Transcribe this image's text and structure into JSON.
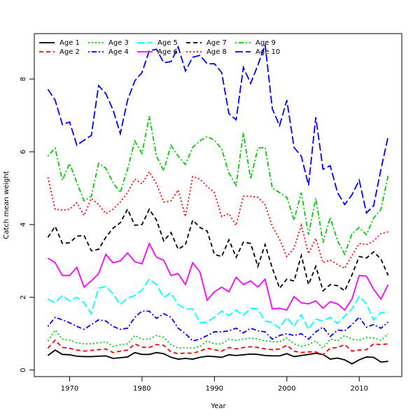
{
  "chart_data": {
    "type": "line",
    "x_label": "Year",
    "y_label": "Catch mean weight",
    "x": [
      1967,
      1968,
      1969,
      1970,
      1971,
      1972,
      1973,
      1974,
      1975,
      1976,
      1977,
      1978,
      1979,
      1980,
      1981,
      1982,
      1983,
      1984,
      1985,
      1986,
      1987,
      1988,
      1989,
      1990,
      1991,
      1992,
      1993,
      1994,
      1995,
      1996,
      1997,
      1998,
      1999,
      2000,
      2001,
      2002,
      2003,
      2004,
      2005,
      2006,
      2007,
      2008,
      2009,
      2010,
      2011,
      2012,
      2013,
      2014
    ],
    "xlim": [
      1965.12,
      2015.88
    ],
    "xticks": [
      1970,
      1980,
      1990,
      2000,
      2010
    ],
    "ylim": [
      -0.18,
      9.25
    ],
    "yticks": [
      0,
      2,
      4,
      6,
      8
    ],
    "legend": "top-left",
    "series": [
      {
        "name": "Age 1",
        "color": "#000000",
        "linestyle": "solid",
        "values": [
          0.4,
          0.55,
          0.43,
          0.42,
          0.38,
          0.37,
          0.37,
          0.38,
          0.39,
          0.32,
          0.34,
          0.36,
          0.48,
          0.43,
          0.43,
          0.48,
          0.45,
          0.35,
          0.3,
          0.32,
          0.3,
          0.35,
          0.38,
          0.37,
          0.35,
          0.42,
          0.4,
          0.42,
          0.44,
          0.43,
          0.4,
          0.39,
          0.39,
          0.45,
          0.37,
          0.4,
          0.43,
          0.46,
          0.43,
          0.3,
          0.33,
          0.28,
          0.17,
          0.28,
          0.36,
          0.35,
          0.22,
          0.24
        ]
      },
      {
        "name": "Age 2",
        "color": "#ff0000",
        "linestyle": "dashed",
        "values": [
          0.6,
          0.82,
          0.62,
          0.6,
          0.55,
          0.52,
          0.54,
          0.56,
          0.58,
          0.48,
          0.52,
          0.55,
          0.72,
          0.63,
          0.62,
          0.7,
          0.68,
          0.5,
          0.45,
          0.47,
          0.46,
          0.52,
          0.6,
          0.56,
          0.52,
          0.62,
          0.58,
          0.62,
          0.64,
          0.62,
          0.58,
          0.56,
          0.58,
          0.68,
          0.52,
          0.48,
          0.5,
          0.5,
          0.42,
          0.6,
          0.62,
          0.7,
          0.52,
          0.55,
          0.56,
          0.72,
          0.7,
          0.72
        ]
      },
      {
        "name": "Age 3",
        "color": "#00cd00",
        "linestyle": "dotted",
        "values": [
          0.8,
          1.1,
          0.85,
          0.82,
          0.75,
          0.72,
          0.72,
          0.75,
          0.78,
          0.65,
          0.7,
          0.72,
          0.95,
          0.85,
          0.85,
          0.95,
          0.9,
          0.7,
          0.6,
          0.62,
          0.6,
          0.65,
          0.8,
          0.72,
          0.72,
          0.85,
          0.82,
          0.85,
          0.88,
          0.85,
          0.8,
          0.78,
          0.78,
          0.88,
          0.72,
          0.65,
          0.7,
          0.8,
          0.6,
          0.85,
          0.8,
          0.95,
          0.85,
          0.82,
          0.9,
          0.88,
          0.82,
          1.0
        ]
      },
      {
        "name": "Age 4",
        "color": "#0000ff",
        "linestyle": "dotdash",
        "values": [
          1.2,
          1.45,
          1.38,
          1.3,
          1.2,
          1.12,
          1.25,
          1.38,
          1.35,
          1.2,
          1.12,
          1.15,
          1.45,
          1.62,
          1.62,
          1.42,
          1.55,
          1.45,
          1.15,
          1.0,
          0.8,
          0.85,
          0.95,
          1.05,
          1.05,
          1.08,
          1.15,
          1.02,
          1.15,
          1.08,
          1.05,
          0.85,
          0.95,
          1.0,
          0.95,
          1.0,
          0.85,
          1.05,
          1.18,
          0.92,
          1.1,
          1.08,
          1.25,
          1.45,
          1.18,
          1.25,
          1.15,
          1.32
        ]
      },
      {
        "name": "Age 5",
        "color": "#00ffff",
        "linestyle": "longdash",
        "values": [
          1.95,
          1.85,
          2.05,
          1.9,
          2.0,
          1.85,
          1.55,
          2.25,
          2.3,
          2.1,
          1.8,
          1.98,
          2.05,
          2.2,
          2.5,
          2.35,
          2.0,
          2.12,
          1.8,
          1.68,
          1.68,
          1.3,
          1.32,
          1.45,
          1.62,
          1.5,
          1.65,
          1.5,
          1.7,
          1.68,
          1.35,
          1.3,
          1.15,
          1.45,
          1.2,
          1.52,
          1.12,
          1.4,
          1.35,
          1.45,
          1.28,
          1.48,
          1.68,
          2.02,
          1.82,
          1.38,
          1.58,
          1.58
        ]
      },
      {
        "name": "Age 6",
        "color": "#ff00ff",
        "linestyle": "solid",
        "values": [
          3.08,
          2.95,
          2.6,
          2.6,
          2.82,
          2.28,
          2.45,
          2.65,
          3.18,
          2.95,
          3.0,
          3.22,
          2.98,
          2.92,
          3.48,
          3.1,
          3.02,
          2.6,
          2.65,
          2.35,
          2.95,
          2.7,
          1.92,
          2.15,
          2.28,
          2.15,
          2.55,
          2.35,
          2.45,
          2.28,
          2.5,
          1.68,
          1.7,
          1.65,
          2.02,
          1.85,
          1.82,
          1.9,
          1.7,
          1.88,
          1.82,
          1.65,
          1.95,
          2.6,
          2.58,
          2.22,
          1.95,
          2.35
        ]
      },
      {
        "name": "Age 7",
        "color": "#000000",
        "linestyle": "dashed",
        "values": [
          3.65,
          3.95,
          3.48,
          3.5,
          3.68,
          3.7,
          3.28,
          3.32,
          3.65,
          3.9,
          4.05,
          4.42,
          3.98,
          4.0,
          4.42,
          4.12,
          3.55,
          3.78,
          3.32,
          3.45,
          4.12,
          3.92,
          3.82,
          3.18,
          3.12,
          3.58,
          3.1,
          3.52,
          3.48,
          2.85,
          3.45,
          2.8,
          2.25,
          2.5,
          2.45,
          3.15,
          2.35,
          2.85,
          2.18,
          2.35,
          2.32,
          2.18,
          2.62,
          3.12,
          3.08,
          3.25,
          3.05,
          2.6
        ]
      },
      {
        "name": "Age 8",
        "color": "#ff0000",
        "linestyle": "dotted",
        "values": [
          5.3,
          4.42,
          4.4,
          4.42,
          4.6,
          4.25,
          4.72,
          4.55,
          4.3,
          4.42,
          4.62,
          4.88,
          5.25,
          5.12,
          5.45,
          5.12,
          4.62,
          4.65,
          4.95,
          4.22,
          5.32,
          5.25,
          5.05,
          4.88,
          4.22,
          4.3,
          3.98,
          4.78,
          4.78,
          4.75,
          4.55,
          3.95,
          3.6,
          3.12,
          3.35,
          3.98,
          3.2,
          3.62,
          2.95,
          3.02,
          2.9,
          2.8,
          3.15,
          3.48,
          3.45,
          3.55,
          3.75,
          3.8
        ]
      },
      {
        "name": "Age 9",
        "color": "#00cd00",
        "linestyle": "dotdash",
        "values": [
          5.88,
          6.1,
          5.22,
          5.68,
          5.15,
          4.65,
          4.78,
          5.68,
          5.55,
          5.15,
          4.88,
          5.52,
          6.3,
          5.95,
          6.98,
          5.88,
          5.48,
          6.18,
          5.88,
          5.65,
          6.12,
          6.3,
          6.42,
          6.32,
          6.08,
          5.42,
          5.08,
          6.52,
          5.25,
          6.1,
          6.12,
          5.0,
          4.88,
          4.75,
          4.12,
          4.88,
          3.72,
          4.72,
          3.5,
          4.2,
          3.55,
          3.18,
          3.75,
          3.92,
          3.72,
          4.18,
          4.42,
          5.35
        ]
      },
      {
        "name": "Age 10",
        "color": "#0000ff",
        "linestyle": "longdash",
        "values": [
          7.72,
          7.42,
          6.75,
          6.82,
          6.18,
          6.32,
          6.45,
          7.82,
          7.6,
          7.15,
          6.5,
          7.42,
          7.95,
          8.18,
          8.78,
          8.82,
          8.45,
          8.48,
          8.88,
          8.22,
          8.6,
          8.65,
          8.42,
          8.42,
          8.18,
          7.05,
          6.88,
          8.32,
          7.88,
          8.38,
          8.95,
          7.18,
          6.72,
          7.42,
          6.12,
          5.88,
          5.08,
          6.95,
          5.52,
          5.62,
          4.88,
          4.55,
          4.82,
          5.22,
          4.32,
          4.52,
          5.52,
          6.42
        ]
      }
    ]
  }
}
